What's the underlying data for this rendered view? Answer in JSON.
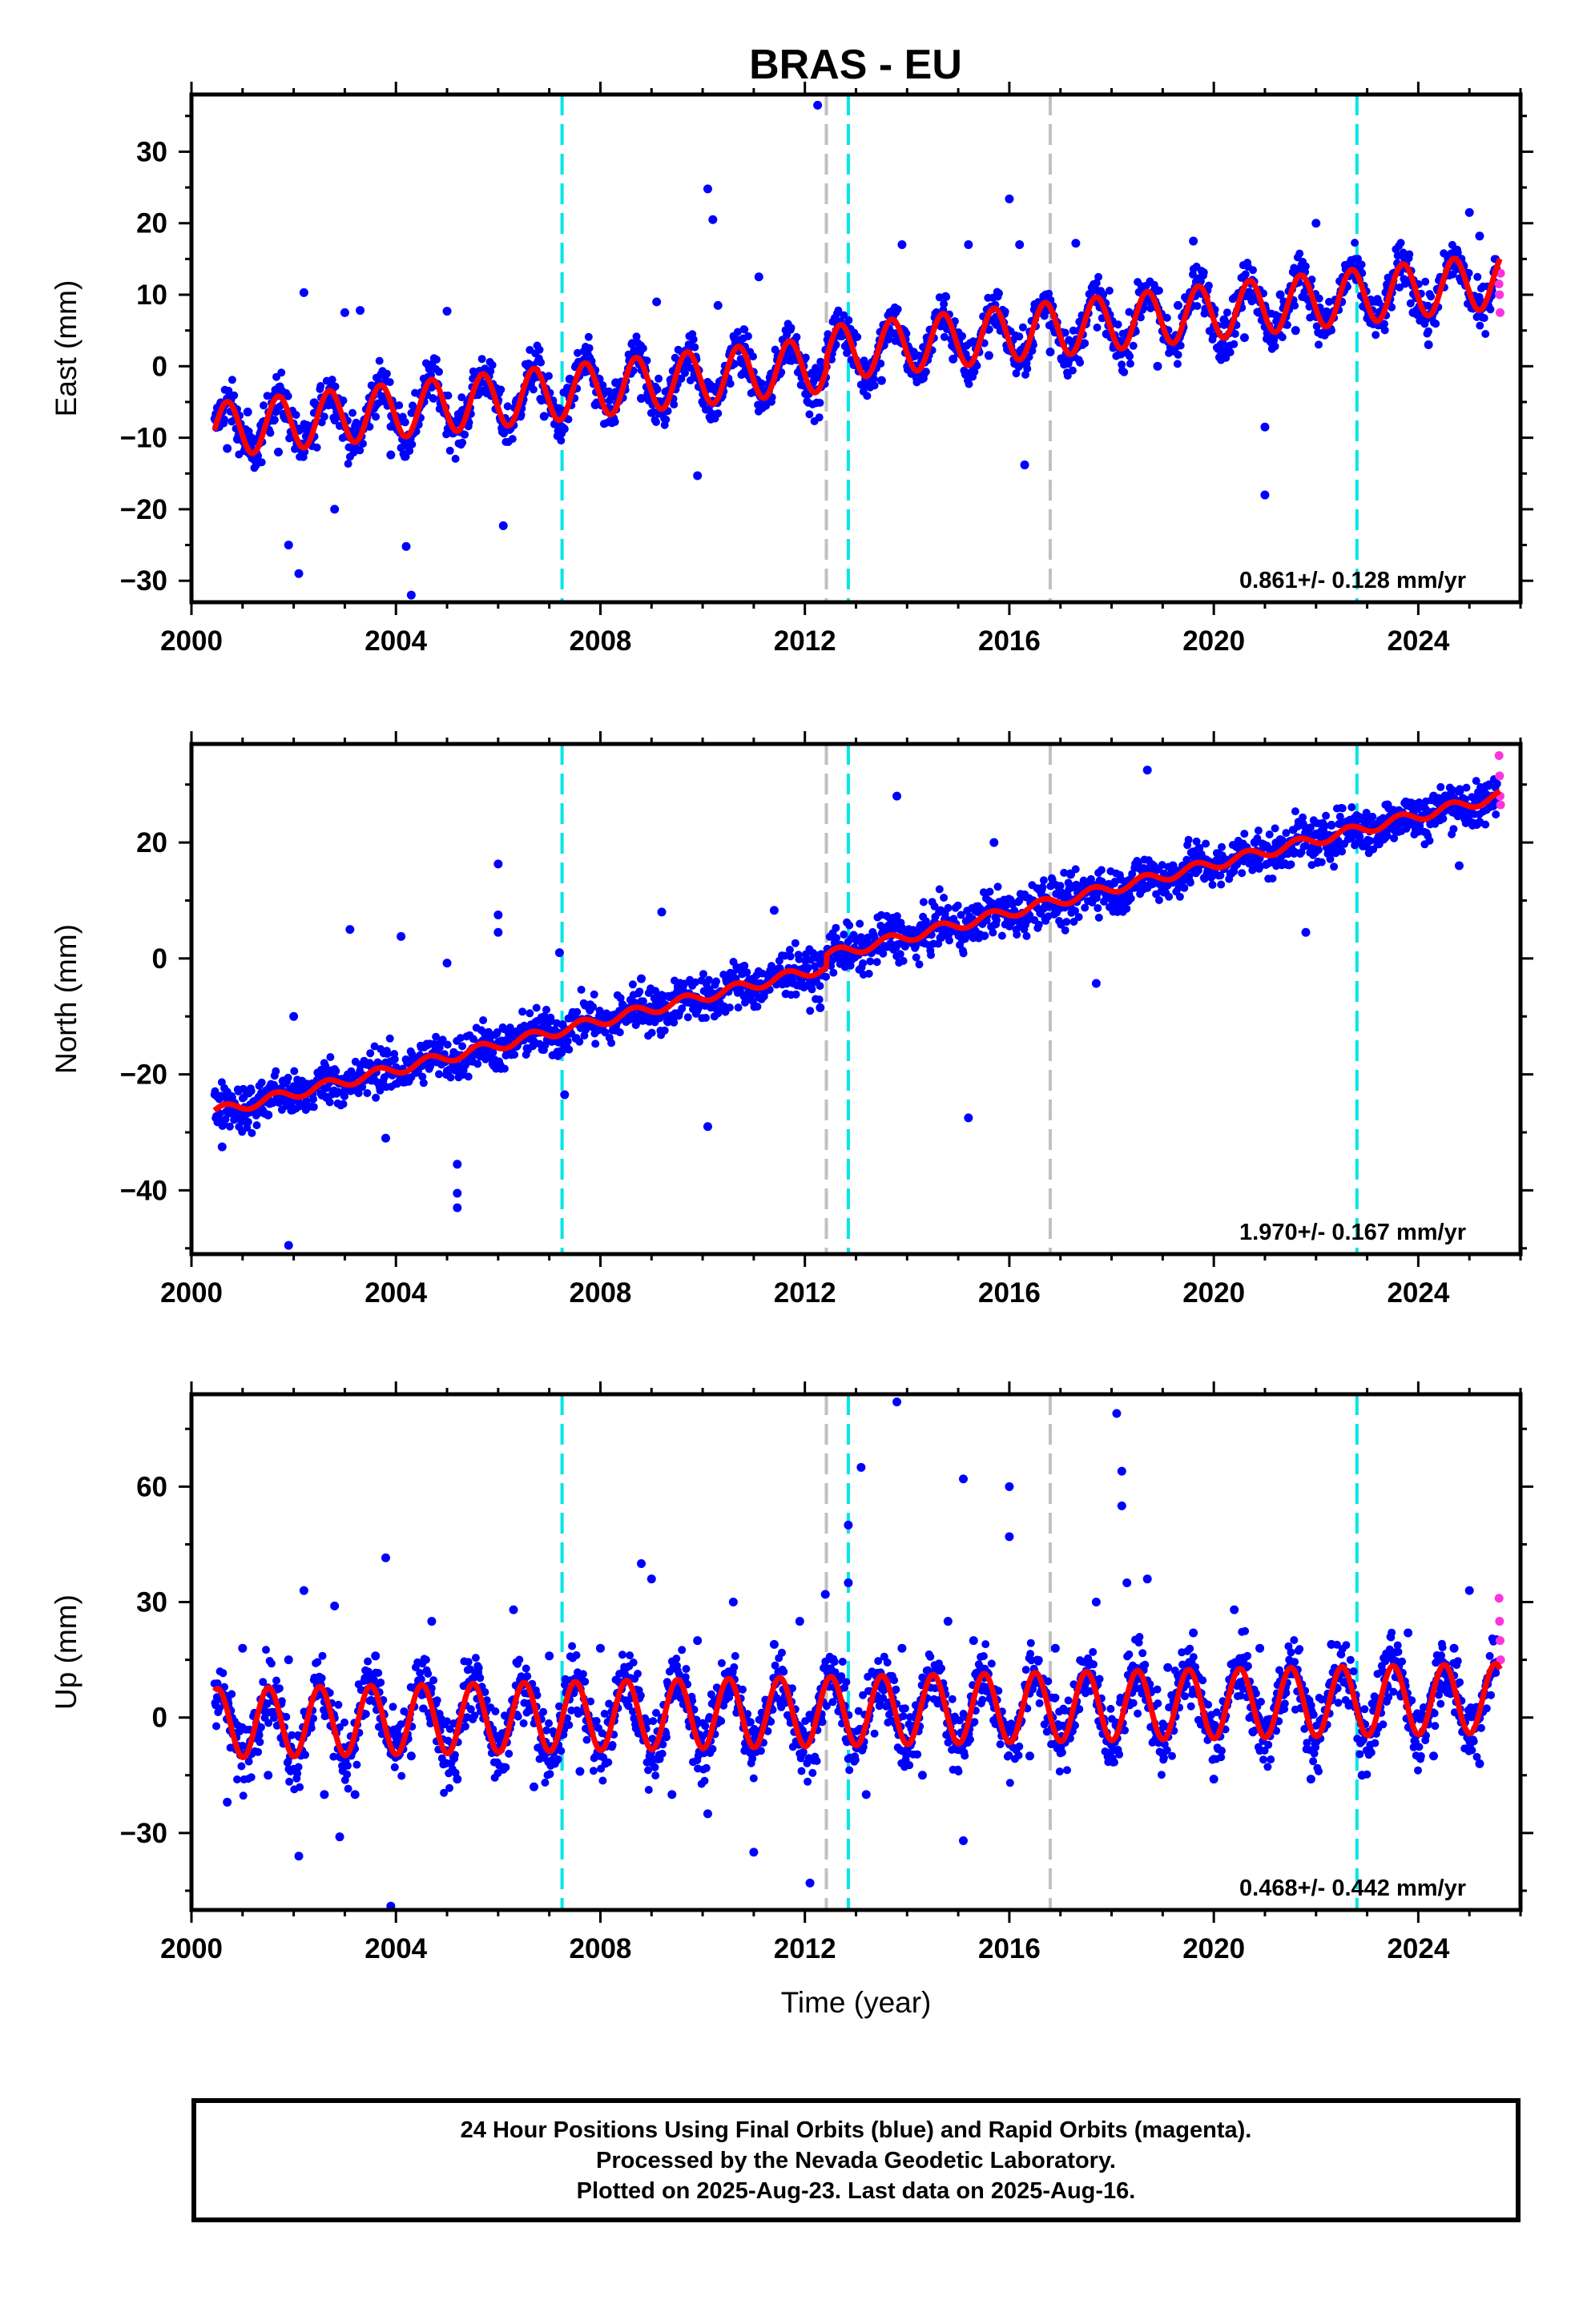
{
  "title": "BRAS - EU",
  "colors": {
    "final_orbits": "#0000ff",
    "rapid_orbits": "#ff33dd",
    "model_fit": "#ff0000",
    "equipment_change": "#00e5e5",
    "other_event": "#c0c0c0"
  },
  "caption": {
    "line1": "24 Hour Positions Using Final Orbits (blue) and Rapid Orbits (magenta).",
    "line2": "Processed by the Nevada Geodetic Laboratory.",
    "line3": "Plotted on 2025-Aug-23. Last data on 2025-Aug-16."
  },
  "chart_data": [
    {
      "type": "scatter",
      "ylabel": "East (mm)",
      "xlabel": "",
      "xlim": [
        2000,
        2026
      ],
      "ylim": [
        -33,
        38
      ],
      "xticks": [
        2000,
        2004,
        2008,
        2012,
        2016,
        2020,
        2024
      ],
      "yticks": [
        -30,
        -20,
        -10,
        0,
        10,
        20,
        30
      ],
      "x_tick_labels": [
        "2000",
        "2004",
        "2008",
        "2012",
        "2016",
        "2020",
        "2024"
      ],
      "y_tick_labels": [
        "−30",
        "−20",
        "−10",
        "0",
        "10",
        "20",
        "30"
      ],
      "rate_text": "0.861+/- 0.128 mm/yr",
      "cyan_lines": [
        2007.25,
        2012.85,
        2022.8
      ],
      "gray_lines": [
        2012.42,
        2016.8
      ],
      "model": {
        "start": 2000.45,
        "end": 2025.6,
        "trend_start": -8.2,
        "trend_end": 11.2,
        "amplitude": 3.8,
        "phase": 0.0,
        "offsets": [
          {
            "year": 2012.42,
            "jump": 1.5
          }
        ]
      },
      "points": [
        [
          2000.5,
          -8.5
        ],
        [
          2000.7,
          -11.5
        ],
        [
          2000.9,
          -10.2
        ],
        [
          2001.1,
          -6.4
        ],
        [
          2001.4,
          -7.8
        ],
        [
          2001.7,
          -12.0
        ],
        [
          2001.9,
          -25.0
        ],
        [
          2002.1,
          -29.0
        ],
        [
          2002.2,
          10.3
        ],
        [
          2002.4,
          -5.1
        ],
        [
          2002.8,
          -20.0
        ],
        [
          2003.0,
          7.5
        ],
        [
          2003.3,
          7.8
        ],
        [
          2003.6,
          -5.5
        ],
        [
          2003.9,
          -12.4
        ],
        [
          2004.2,
          -25.2
        ],
        [
          2004.3,
          -32.0
        ],
        [
          2004.6,
          -4.0
        ],
        [
          2005.0,
          7.7
        ],
        [
          2005.3,
          -6.2
        ],
        [
          2005.8,
          -3.0
        ],
        [
          2006.1,
          -22.3
        ],
        [
          2006.5,
          -3.8
        ],
        [
          2006.9,
          -7.0
        ],
        [
          2007.4,
          -1.8
        ],
        [
          2007.9,
          -5.4
        ],
        [
          2008.3,
          -2.3
        ],
        [
          2008.8,
          -4.5
        ],
        [
          2009.1,
          9.0
        ],
        [
          2009.5,
          -2.5
        ],
        [
          2009.9,
          -15.3
        ],
        [
          2010.1,
          24.8
        ],
        [
          2010.2,
          20.5
        ],
        [
          2010.3,
          8.5
        ],
        [
          2010.8,
          -1.0
        ],
        [
          2011.1,
          12.5
        ],
        [
          2011.6,
          1.0
        ],
        [
          2012.0,
          -1.2
        ],
        [
          2012.25,
          36.5
        ],
        [
          2012.6,
          3.0
        ],
        [
          2013.1,
          0.2
        ],
        [
          2013.5,
          -2.0
        ],
        [
          2013.9,
          17.0
        ],
        [
          2014.4,
          3.5
        ],
        [
          2014.9,
          1.0
        ],
        [
          2015.2,
          17.0
        ],
        [
          2015.6,
          1.5
        ],
        [
          2016.0,
          23.4
        ],
        [
          2016.2,
          17.0
        ],
        [
          2016.3,
          -13.8
        ],
        [
          2016.8,
          2.0
        ],
        [
          2017.3,
          17.2
        ],
        [
          2017.9,
          4.5
        ],
        [
          2018.4,
          5.0
        ],
        [
          2018.9,
          0.0
        ],
        [
          2019.3,
          8.5
        ],
        [
          2019.6,
          17.5
        ],
        [
          2020.2,
          6.5
        ],
        [
          2020.6,
          4.0
        ],
        [
          2021.0,
          -18.0
        ],
        [
          2021.0,
          -8.5
        ],
        [
          2021.3,
          10.0
        ],
        [
          2021.6,
          5.0
        ],
        [
          2022.0,
          20.0
        ],
        [
          2022.5,
          9.0
        ],
        [
          2023.0,
          8.0
        ],
        [
          2023.4,
          11.0
        ],
        [
          2023.9,
          7.5
        ],
        [
          2024.2,
          3.0
        ],
        [
          2024.6,
          14.0
        ],
        [
          2025.0,
          21.5
        ],
        [
          2025.2,
          18.2
        ],
        [
          2025.5,
          13.5
        ]
      ],
      "rapid_points": [
        [
          2025.58,
          11.5
        ],
        [
          2025.59,
          10.0
        ],
        [
          2025.6,
          7.5
        ],
        [
          2025.61,
          13.0
        ]
      ]
    },
    {
      "type": "scatter",
      "ylabel": "North (mm)",
      "xlabel": "",
      "xlim": [
        2000,
        2026
      ],
      "ylim": [
        -51,
        37
      ],
      "xticks": [
        2000,
        2004,
        2008,
        2012,
        2016,
        2020,
        2024
      ],
      "yticks": [
        -40,
        -20,
        0,
        20
      ],
      "x_tick_labels": [
        "2000",
        "2004",
        "2008",
        "2012",
        "2016",
        "2020",
        "2024"
      ],
      "y_tick_labels": [
        "−40",
        "−20",
        "0",
        "20"
      ],
      "rate_text": "1.970+/- 0.167 mm/yr",
      "cyan_lines": [
        2007.25,
        2012.85,
        2022.8
      ],
      "gray_lines": [
        2012.42,
        2016.8
      ],
      "model": {
        "start": 2000.45,
        "end": 2025.6,
        "trend_start": -25.5,
        "trend_end": 27.0,
        "amplitude": 0.9,
        "phase": 0.3,
        "offsets": [
          {
            "year": 2012.42,
            "jump": 2.0
          }
        ]
      },
      "points": [
        [
          2000.6,
          -32.5
        ],
        [
          2001.0,
          -28.0
        ],
        [
          2001.5,
          -27.0
        ],
        [
          2001.9,
          -49.5
        ],
        [
          2002.0,
          -10.0
        ],
        [
          2002.5,
          -21.0
        ],
        [
          2003.1,
          5.0
        ],
        [
          2003.5,
          -18.5
        ],
        [
          2003.8,
          -31.0
        ],
        [
          2004.1,
          3.8
        ],
        [
          2004.6,
          -17.0
        ],
        [
          2005.0,
          -0.8
        ],
        [
          2005.2,
          -35.5
        ],
        [
          2005.2,
          -40.5
        ],
        [
          2005.2,
          -43.0
        ],
        [
          2005.8,
          -13.0
        ],
        [
          2006.0,
          16.3
        ],
        [
          2006.0,
          7.5
        ],
        [
          2006.0,
          4.5
        ],
        [
          2006.6,
          -12.0
        ],
        [
          2007.2,
          1.0
        ],
        [
          2007.3,
          -23.5
        ],
        [
          2007.8,
          -8.0
        ],
        [
          2008.3,
          -10.0
        ],
        [
          2008.8,
          -3.5
        ],
        [
          2009.2,
          8.0
        ],
        [
          2009.6,
          -7.0
        ],
        [
          2010.1,
          -29.0
        ],
        [
          2010.5,
          -3.0
        ],
        [
          2011.0,
          -3.5
        ],
        [
          2011.4,
          8.3
        ],
        [
          2011.9,
          -2.0
        ],
        [
          2012.3,
          -8.5
        ],
        [
          2012.8,
          0.5
        ],
        [
          2013.3,
          1.0
        ],
        [
          2013.8,
          28.0
        ],
        [
          2014.3,
          3.0
        ],
        [
          2014.8,
          4.0
        ],
        [
          2015.2,
          -27.5
        ],
        [
          2015.7,
          20.0
        ],
        [
          2016.2,
          7.5
        ],
        [
          2016.7,
          10.0
        ],
        [
          2017.2,
          14.5
        ],
        [
          2017.7,
          -4.3
        ],
        [
          2018.2,
          11.0
        ],
        [
          2018.7,
          32.5
        ],
        [
          2019.2,
          16.0
        ],
        [
          2019.7,
          18.0
        ],
        [
          2020.2,
          15.5
        ],
        [
          2020.8,
          20.0
        ],
        [
          2021.3,
          20.5
        ],
        [
          2021.8,
          4.5
        ],
        [
          2022.3,
          23.0
        ],
        [
          2022.9,
          22.5
        ],
        [
          2023.4,
          26.5
        ],
        [
          2023.9,
          25.0
        ],
        [
          2024.3,
          28.0
        ],
        [
          2024.8,
          16.0
        ],
        [
          2025.2,
          23.5
        ],
        [
          2025.5,
          27.0
        ]
      ],
      "rapid_points": [
        [
          2025.58,
          35.0
        ],
        [
          2025.59,
          31.5
        ],
        [
          2025.6,
          28.0
        ],
        [
          2025.61,
          26.5
        ]
      ]
    },
    {
      "type": "scatter",
      "ylabel": "Up (mm)",
      "xlabel": "Time (year)",
      "xlim": [
        2000,
        2026
      ],
      "ylim": [
        -50,
        84
      ],
      "xticks": [
        2000,
        2004,
        2008,
        2012,
        2016,
        2020,
        2024
      ],
      "yticks": [
        -30,
        0,
        30,
        60
      ],
      "x_tick_labels": [
        "2000",
        "2004",
        "2008",
        "2012",
        "2016",
        "2020",
        "2024"
      ],
      "y_tick_labels": [
        "−30",
        "0",
        "30",
        "60"
      ],
      "rate_text": "0.468+/- 0.442 mm/yr",
      "cyan_lines": [
        2007.25,
        2012.85,
        2022.8
      ],
      "gray_lines": [
        2012.42,
        2016.8
      ],
      "model": {
        "start": 2000.45,
        "end": 2025.6,
        "trend_start": -1.5,
        "trend_end": 5.0,
        "amplitude": 9.0,
        "phase": 1.2,
        "offsets": []
      },
      "points": [
        [
          2000.7,
          -22.0
        ],
        [
          2001.0,
          18.0
        ],
        [
          2001.5,
          -15.0
        ],
        [
          2001.9,
          15.0
        ],
        [
          2002.1,
          -36.0
        ],
        [
          2002.2,
          33.0
        ],
        [
          2002.6,
          -20.0
        ],
        [
          2002.8,
          29.0
        ],
        [
          2002.9,
          -31.0
        ],
        [
          2003.2,
          -20.0
        ],
        [
          2003.6,
          16.0
        ],
        [
          2003.8,
          41.5
        ],
        [
          2003.9,
          -49.0
        ],
        [
          2004.3,
          -10.0
        ],
        [
          2004.7,
          25.0
        ],
        [
          2005.2,
          -16.0
        ],
        [
          2005.6,
          12.0
        ],
        [
          2006.3,
          28.0
        ],
        [
          2006.7,
          -18.0
        ],
        [
          2007.0,
          16.0
        ],
        [
          2007.6,
          -14.0
        ],
        [
          2008.0,
          18.0
        ],
        [
          2008.8,
          40.0
        ],
        [
          2009.0,
          36.0
        ],
        [
          2009.4,
          -20.0
        ],
        [
          2009.9,
          20.0
        ],
        [
          2010.1,
          -25.0
        ],
        [
          2010.6,
          30.0
        ],
        [
          2011.0,
          -35.0
        ],
        [
          2011.4,
          19.0
        ],
        [
          2011.9,
          25.0
        ],
        [
          2012.1,
          -43.0
        ],
        [
          2012.4,
          32.0
        ],
        [
          2012.85,
          50.0
        ],
        [
          2012.85,
          35.0
        ],
        [
          2013.1,
          65.0
        ],
        [
          2013.2,
          -20.0
        ],
        [
          2013.8,
          82.0
        ],
        [
          2013.9,
          18.0
        ],
        [
          2014.3,
          -15.0
        ],
        [
          2014.8,
          25.0
        ],
        [
          2015.1,
          62.0
        ],
        [
          2015.1,
          -32.0
        ],
        [
          2015.3,
          20.0
        ],
        [
          2016.0,
          60.0
        ],
        [
          2016.0,
          47.0
        ],
        [
          2016.4,
          -10.0
        ],
        [
          2016.9,
          18.0
        ],
        [
          2017.4,
          10.0
        ],
        [
          2017.7,
          30.0
        ],
        [
          2018.1,
          79.0
        ],
        [
          2018.2,
          64.0
        ],
        [
          2018.2,
          55.0
        ],
        [
          2018.3,
          35.0
        ],
        [
          2018.7,
          36.0
        ],
        [
          2019.1,
          13.0
        ],
        [
          2019.6,
          22.0
        ],
        [
          2020.0,
          -16.0
        ],
        [
          2020.4,
          28.0
        ],
        [
          2020.9,
          18.0
        ],
        [
          2021.4,
          8.0
        ],
        [
          2021.9,
          -16.0
        ],
        [
          2022.3,
          19.0
        ],
        [
          2022.9,
          -15.0
        ],
        [
          2023.3,
          12.0
        ],
        [
          2023.8,
          22.0
        ],
        [
          2024.3,
          -10.0
        ],
        [
          2024.7,
          18.0
        ],
        [
          2025.0,
          33.0
        ],
        [
          2025.2,
          -12.0
        ],
        [
          2025.5,
          14.0
        ]
      ],
      "rapid_points": [
        [
          2025.58,
          31.0
        ],
        [
          2025.59,
          25.0
        ],
        [
          2025.6,
          20.0
        ],
        [
          2025.61,
          15.0
        ]
      ]
    }
  ]
}
